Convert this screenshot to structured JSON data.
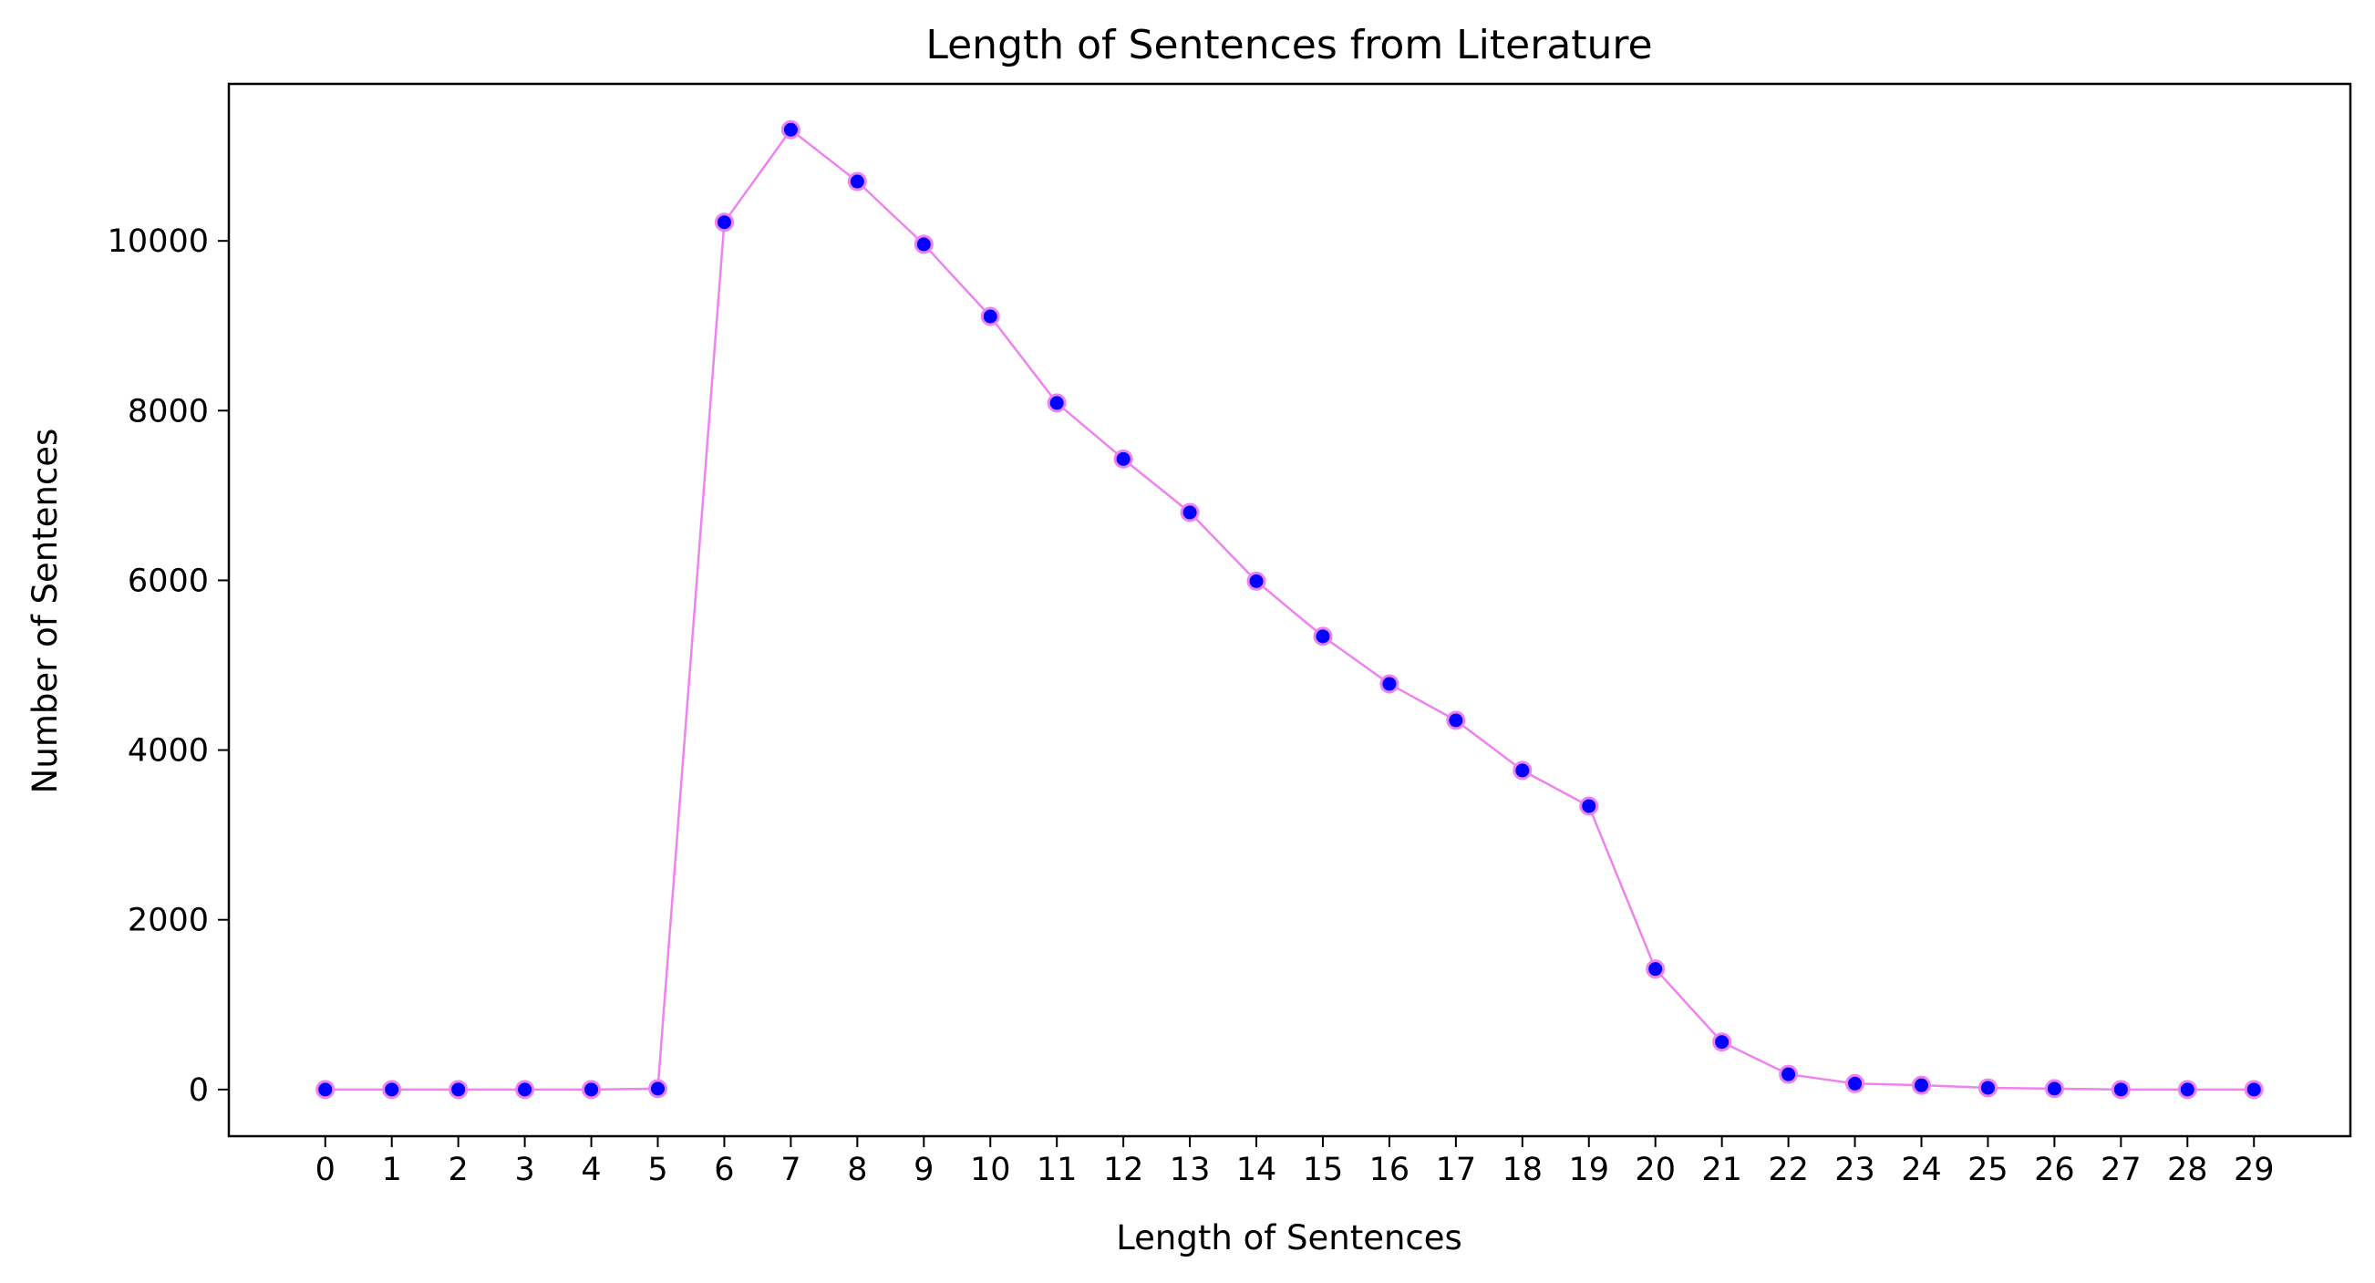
{
  "chart_data": {
    "type": "line",
    "title": "Length of Sentences from Literature",
    "xlabel": "Length of Sentences",
    "ylabel": "Number of Sentences",
    "x": [
      0,
      1,
      2,
      3,
      4,
      5,
      6,
      7,
      8,
      9,
      10,
      11,
      12,
      13,
      14,
      15,
      16,
      17,
      18,
      19,
      20,
      21,
      22,
      23,
      24,
      25,
      26,
      27,
      28,
      29
    ],
    "series": [
      {
        "values": [
          0,
          0,
          0,
          0,
          0,
          10,
          10220,
          11310,
          10700,
          9960,
          9110,
          8090,
          7430,
          6800,
          5990,
          5340,
          4780,
          4350,
          3760,
          3340,
          1420,
          560,
          180,
          70,
          50,
          20,
          10,
          0,
          0,
          0
        ],
        "line_color": "#ee82ee",
        "marker_color": "#0000ff"
      }
    ],
    "xlim": [
      -1.45,
      30.45
    ],
    "ylim": [
      -550,
      11850
    ],
    "yticks": [
      0,
      2000,
      4000,
      6000,
      8000,
      10000
    ],
    "grid": false,
    "legend": "none"
  }
}
